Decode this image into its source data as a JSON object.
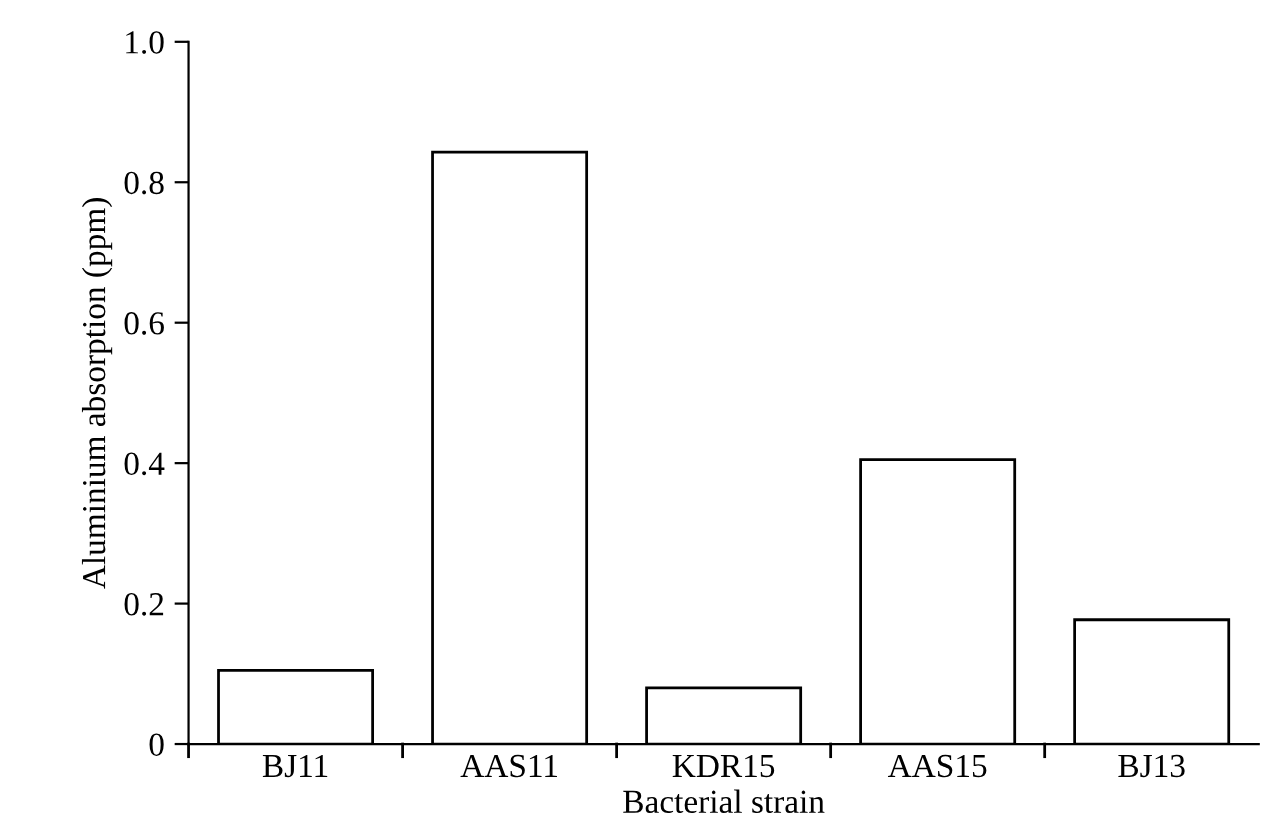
{
  "chart_data": {
    "type": "bar",
    "xlabel": "Bacterial strain",
    "ylabel": "Aluminium absorption (ppm)",
    "categories": [
      "BJ11",
      "AAS11",
      "KDR15",
      "AAS15",
      "BJ13"
    ],
    "values": [
      0.105,
      0.843,
      0.08,
      0.405,
      0.177
    ],
    "color": "#ffffff",
    "ylim": [
      0,
      1.0
    ],
    "yticks": [
      0,
      0.2,
      0.4,
      0.6,
      0.8,
      {
        "value": 1.0,
        "label": "1.0"
      }
    ],
    "grid": false,
    "legend": false
  }
}
